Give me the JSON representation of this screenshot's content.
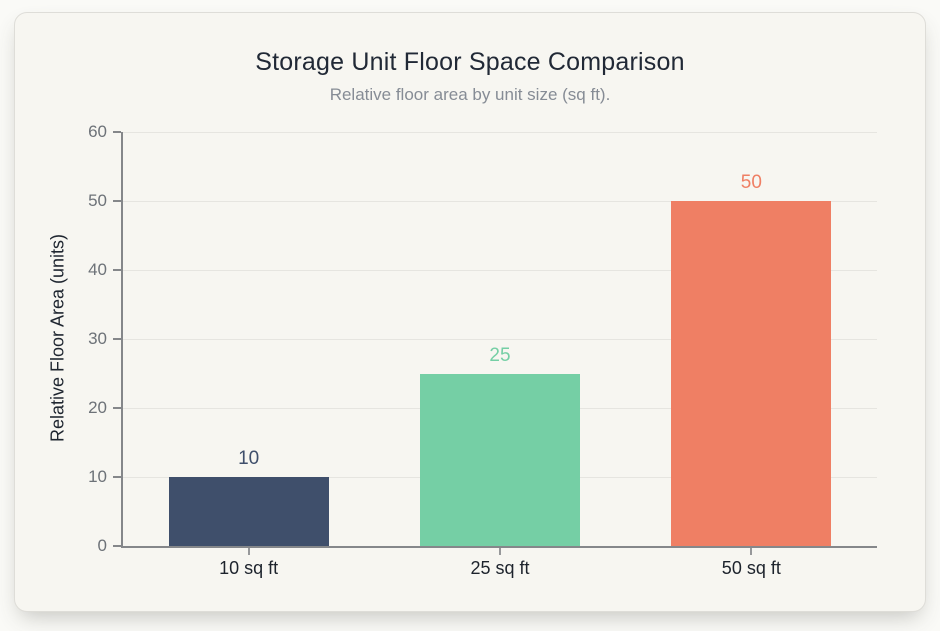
{
  "chart_data": {
    "type": "bar",
    "title": "Storage Unit Floor Space Comparison",
    "subtitle": "Relative floor area by unit size (sq ft).",
    "ylabel": "Relative Floor Area (units)",
    "xlabel": "",
    "categories": [
      "10 sq ft",
      "25 sq ft",
      "50 sq ft"
    ],
    "values": [
      10,
      25,
      50
    ],
    "bar_colors": [
      "#3f4f6b",
      "#75cfa5",
      "#ef7f64"
    ],
    "value_label_colors": [
      "#3f4f6b",
      "#75cfa5",
      "#ef7f64"
    ],
    "ylim": [
      0,
      60
    ],
    "ytick_step": 10,
    "ytick_labels": [
      "0",
      "10",
      "20",
      "30",
      "40",
      "50",
      "60"
    ],
    "grid": true,
    "legend_position": "none"
  },
  "colors": {
    "card_background": "#f7f6f1",
    "page_background": "#fafaf7",
    "axis": "#85878a",
    "gridline": "#e6e5e0",
    "tick_label": "#6d7278",
    "title": "#212936",
    "subtitle": "#868c95"
  }
}
